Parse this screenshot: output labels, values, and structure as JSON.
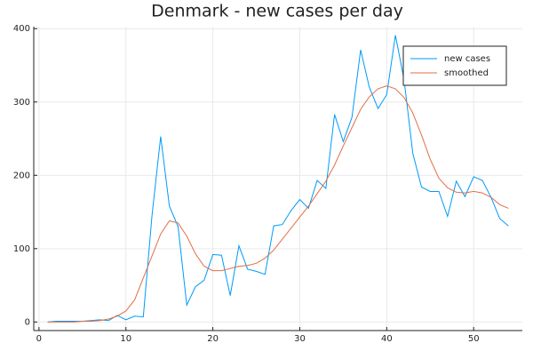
{
  "chart_data": {
    "type": "line",
    "title": "Denmark - new cases per day",
    "x": [
      1,
      2,
      3,
      4,
      5,
      6,
      7,
      8,
      9,
      10,
      11,
      12,
      13,
      14,
      15,
      16,
      17,
      18,
      19,
      20,
      21,
      22,
      23,
      24,
      25,
      26,
      27,
      28,
      29,
      30,
      31,
      32,
      33,
      34,
      35,
      36,
      37,
      38,
      39,
      40,
      41,
      42,
      43,
      44,
      45,
      46,
      47,
      48,
      49,
      50,
      51,
      52,
      53,
      54
    ],
    "series": [
      {
        "name": "new cases",
        "color": "#009af9",
        "values": [
          0,
          1,
          1,
          1,
          1,
          2,
          3,
          2,
          9,
          3,
          8,
          7,
          145,
          253,
          158,
          130,
          23,
          48,
          57,
          92,
          91,
          36,
          104,
          72,
          69,
          65,
          131,
          133,
          152,
          167,
          155,
          193,
          182,
          283,
          246,
          279,
          371,
          320,
          291,
          310,
          391,
          330,
          230,
          184,
          178,
          178,
          144,
          192,
          171,
          198,
          193,
          170,
          141,
          131
        ]
      },
      {
        "name": "smoothed",
        "color": "#e26f46",
        "values": [
          0,
          0,
          0,
          0,
          1,
          1,
          2,
          4,
          8,
          15,
          30,
          60,
          90,
          120,
          138,
          135,
          117,
          93,
          76,
          70,
          70,
          73,
          76,
          77,
          80,
          87,
          98,
          113,
          128,
          143,
          158,
          175,
          192,
          214,
          240,
          265,
          290,
          307,
          318,
          322,
          318,
          306,
          285,
          255,
          222,
          196,
          183,
          177,
          176,
          178,
          176,
          170,
          160,
          155
        ]
      }
    ],
    "xlim": [
      -0.6,
      55.6
    ],
    "xticks": [
      0,
      10,
      20,
      30,
      40,
      50
    ],
    "ylim": [
      -11.7,
      402.7
    ],
    "yticks": [
      0,
      100,
      200,
      300,
      400
    ],
    "grid": true,
    "legend": "top-right"
  }
}
